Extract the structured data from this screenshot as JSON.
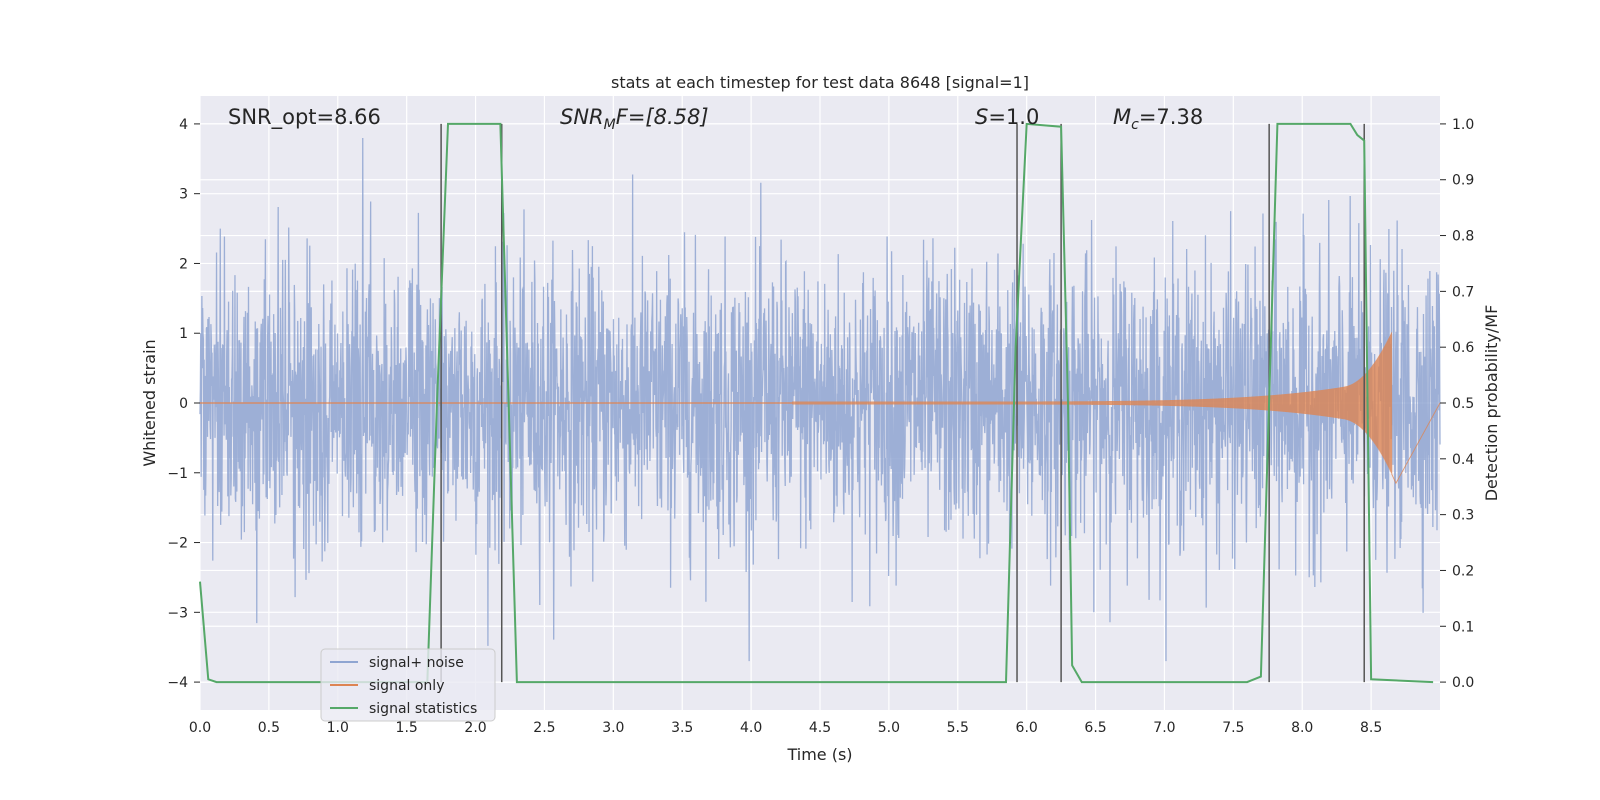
{
  "chart_data": {
    "type": "line",
    "title": "stats at each timestep for test data 8648 [signal=1]",
    "xlabel": "Time (s)",
    "ylabel": "Whitened strain",
    "y2label": "Detection probability/MF",
    "xlim": [
      0.0,
      9.0
    ],
    "ylim": [
      -4.4,
      4.4
    ],
    "y2lim": [
      -0.05,
      1.05
    ],
    "x_ticks": [
      "0.0",
      "0.5",
      "1.0",
      "1.5",
      "2.0",
      "2.5",
      "3.0",
      "3.5",
      "4.0",
      "4.5",
      "5.0",
      "5.5",
      "6.0",
      "6.5",
      "7.0",
      "7.5",
      "8.0",
      "8.5"
    ],
    "x_tick_values": [
      0.0,
      0.5,
      1.0,
      1.5,
      2.0,
      2.5,
      3.0,
      3.5,
      4.0,
      4.5,
      5.0,
      5.5,
      6.0,
      6.5,
      7.0,
      7.5,
      8.0,
      8.5
    ],
    "y_ticks": [
      "4",
      "3",
      "2",
      "1",
      "0",
      "−1",
      "−2",
      "−3",
      "−4"
    ],
    "y_tick_values": [
      4,
      3,
      2,
      1,
      0,
      -1,
      -2,
      -3,
      -4
    ],
    "y2_ticks": [
      "1.0",
      "0.9",
      "0.8",
      "0.7",
      "0.6",
      "0.5",
      "0.4",
      "0.3",
      "0.2",
      "0.1",
      "0.0"
    ],
    "y2_tick_values": [
      1.0,
      0.9,
      0.8,
      0.7,
      0.6,
      0.5,
      0.4,
      0.3,
      0.2,
      0.1,
      0.0
    ],
    "grid": true,
    "legend_position": "bottom-left",
    "annotations": {
      "snr_opt": "SNR_opt=8.66",
      "snr_mf_main": "SNR",
      "snr_mf_sub": "M",
      "snr_mf_rest": "F=[8.58]",
      "s_main": "S",
      "s_rest": "=1.0",
      "mc_main": "M",
      "mc_sub": "c",
      "mc_rest": "=7.38"
    },
    "series": [
      {
        "name": "signal+ noise",
        "color": "#8fa5d1",
        "description_values": "whitened strain noise, roughly within [-3.7, 4.0]"
      },
      {
        "name": "signal only",
        "color": "#dd8452",
        "envelope": {
          "start_x": 4.3,
          "peak_x": 8.65,
          "peak_y": 1.0,
          "min_y": -1.15,
          "end_x": 8.68
        }
      },
      {
        "name": "signal statistics",
        "color": "#55a868",
        "x": [
          0.0,
          0.06,
          0.12,
          1.65,
          1.72,
          1.8,
          2.18,
          2.3,
          5.85,
          5.92,
          6.0,
          6.25,
          6.3,
          6.33,
          6.4,
          7.6,
          7.7,
          7.82,
          8.35,
          8.4,
          8.45,
          8.5,
          8.95
        ],
        "y": [
          0.18,
          0.005,
          0.0,
          0.0,
          0.5,
          1.0,
          1.0,
          0.0,
          0.0,
          0.6,
          1.0,
          0.995,
          0.5,
          0.03,
          0.0,
          0.0,
          0.01,
          1.0,
          1.0,
          0.98,
          0.97,
          0.005,
          0.0
        ]
      }
    ],
    "vertical_markers": [
      1.75,
      2.19,
      5.93,
      6.25,
      7.76,
      8.45
    ]
  },
  "legend": {
    "items": [
      {
        "label": "signal+ noise",
        "color": "#8fa5d1"
      },
      {
        "label": "signal only",
        "color": "#dd8452"
      },
      {
        "label": "signal statistics",
        "color": "#55a868"
      }
    ]
  }
}
